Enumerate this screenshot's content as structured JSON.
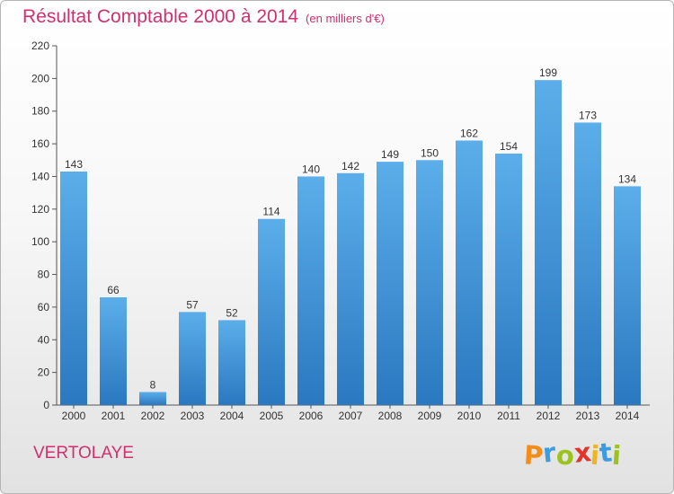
{
  "chart_data": {
    "type": "bar",
    "title": "Résultat Comptable 2000 à 2014",
    "subtitle": "(en milliers d'€)",
    "categories": [
      "2000",
      "2001",
      "2002",
      "2003",
      "2004",
      "2005",
      "2006",
      "2007",
      "2008",
      "2009",
      "2010",
      "2011",
      "2012",
      "2013",
      "2014"
    ],
    "values": [
      143,
      66,
      8,
      57,
      52,
      114,
      140,
      142,
      149,
      150,
      162,
      154,
      199,
      173,
      134
    ],
    "ylim": [
      0,
      220
    ],
    "yticks": [
      0,
      20,
      40,
      60,
      80,
      100,
      120,
      140,
      160,
      180,
      200,
      220
    ],
    "grid": false,
    "bar_color": "#3d8fd6"
  },
  "commune": "VERTOLAYE",
  "logo": {
    "letters": [
      "P",
      "r",
      "o",
      "x",
      "i",
      "t",
      "i"
    ],
    "colors": [
      "#f28c1a",
      "#3d9be0",
      "#9bc31e",
      "#e6332a",
      "#f0b41c",
      "#3d9be0",
      "#9bc31e"
    ]
  },
  "colors": {
    "accent": "#d0306f"
  }
}
